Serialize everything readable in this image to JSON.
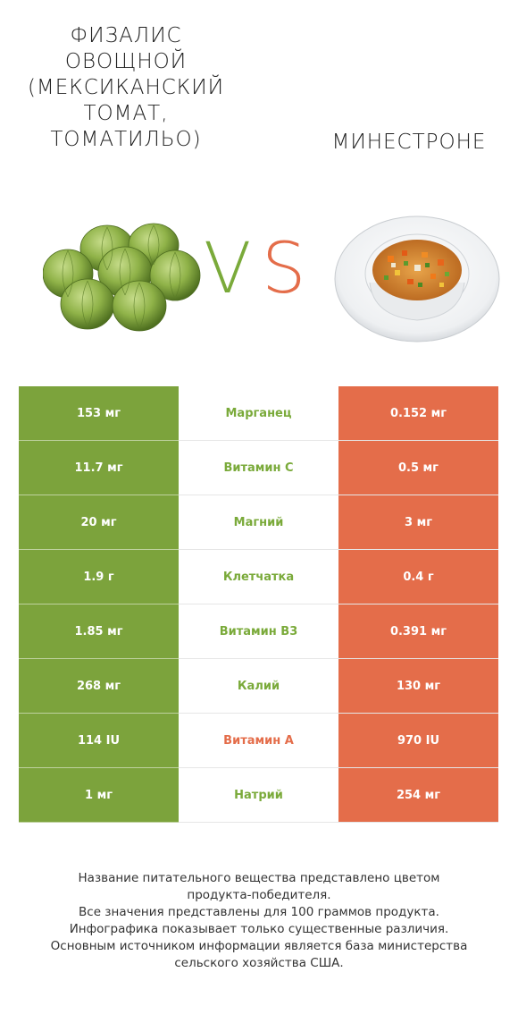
{
  "header": {
    "left_title": "Физалис овощной (мексиканский томат, томатильо)",
    "right_title": "Минестроне"
  },
  "vs": {
    "v": "V",
    "s": "S"
  },
  "images": {
    "left": "tomatillo-image",
    "right": "minestrone-soup-image"
  },
  "colors": {
    "green": "#7ca33c",
    "orange": "#e46d4a",
    "nutrient_green": "#7aaa3a",
    "nutrient_orange": "#e46d4a"
  },
  "rows": [
    {
      "left": "153 мг",
      "nutrient": "Марганец",
      "right": "0.152 мг",
      "winner": "left"
    },
    {
      "left": "11.7 мг",
      "nutrient": "Витамин C",
      "right": "0.5 мг",
      "winner": "left"
    },
    {
      "left": "20 мг",
      "nutrient": "Магний",
      "right": "3 мг",
      "winner": "left"
    },
    {
      "left": "1.9 г",
      "nutrient": "Клетчатка",
      "right": "0.4 г",
      "winner": "left"
    },
    {
      "left": "1.85 мг",
      "nutrient": "Витамин B3",
      "right": "0.391 мг",
      "winner": "left"
    },
    {
      "left": "268 мг",
      "nutrient": "Калий",
      "right": "130 мг",
      "winner": "left"
    },
    {
      "left": "114 IU",
      "nutrient": "Витамин A",
      "right": "970 IU",
      "winner": "right"
    },
    {
      "left": "1 мг",
      "nutrient": "Натрий",
      "right": "254 мг",
      "winner": "left"
    }
  ],
  "footnote": {
    "line1": "Название питательного вещества представлено цветом",
    "line2": "продукта-победителя.",
    "line3": "Все значения представлены для 100 граммов продукта.",
    "line4": "Инфографика показывает только существенные различия.",
    "line5": "Основным источником информации является база министерства",
    "line6": "сельского хозяйства США."
  }
}
